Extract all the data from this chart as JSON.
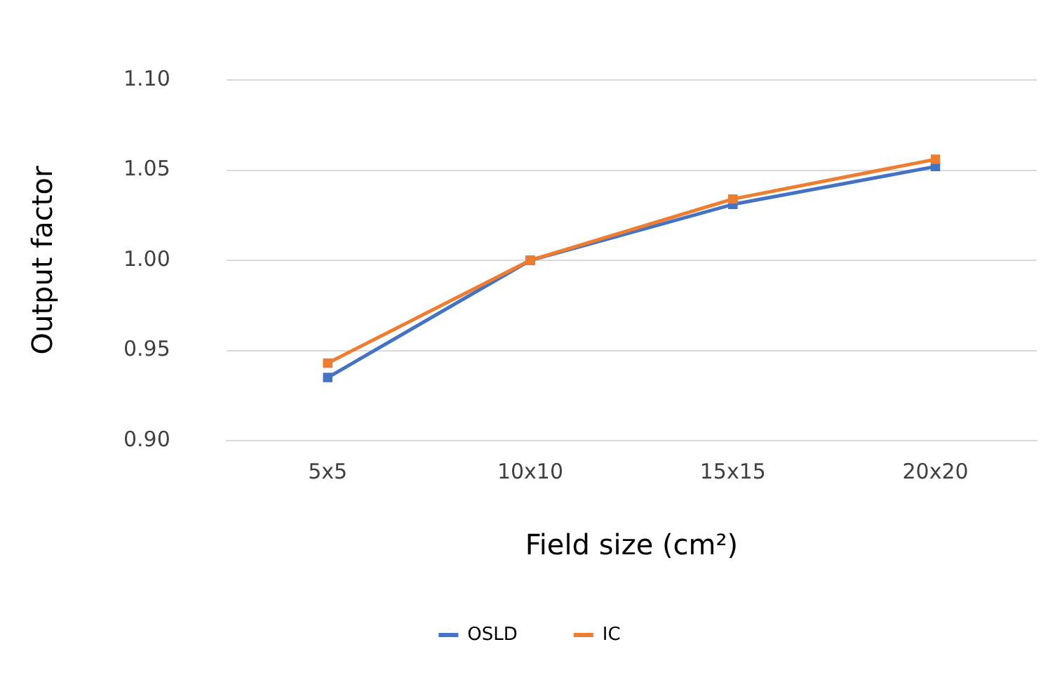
{
  "chart_data": {
    "type": "line",
    "xlabel": "Field size (cm²)",
    "ylabel": "Output factor",
    "categories": [
      "5x5",
      "10x10",
      "15x15",
      "20x20"
    ],
    "series": [
      {
        "name": "OSLD",
        "color": "#4472c4",
        "values": [
          0.935,
          1.0,
          1.031,
          1.052
        ]
      },
      {
        "name": "IC",
        "color": "#ed7d31",
        "values": [
          0.943,
          1.0,
          1.034,
          1.056
        ]
      }
    ],
    "ylim": [
      0.9,
      1.1
    ],
    "yticks": [
      {
        "value": 0.9,
        "label": "0.90"
      },
      {
        "value": 0.95,
        "label": "0.95"
      },
      {
        "value": 1.0,
        "label": "1.00"
      },
      {
        "value": 1.05,
        "label": "1.05"
      },
      {
        "value": 1.1,
        "label": "1.10"
      }
    ],
    "grid": "y",
    "legend": "bottom",
    "marker": "square",
    "line_style": "solid"
  }
}
